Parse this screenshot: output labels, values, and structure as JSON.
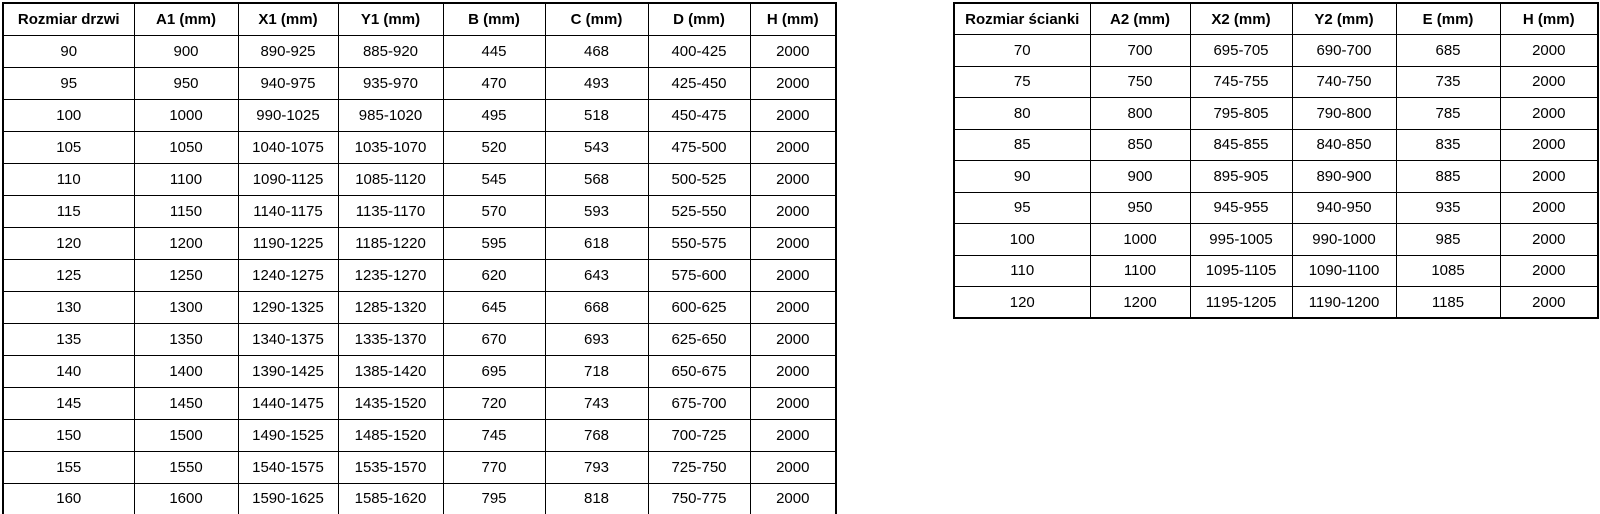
{
  "colors": {
    "background": "#ffffff",
    "border": "#000000",
    "text": "#000000"
  },
  "door_table": {
    "headers": [
      "Rozmiar drzwi",
      "A1 (mm)",
      "X1 (mm)",
      "Y1 (mm)",
      "B (mm)",
      "C (mm)",
      "D (mm)",
      "H (mm)"
    ],
    "rows": [
      [
        "90",
        "900",
        "890-925",
        "885-920",
        "445",
        "468",
        "400-425",
        "2000"
      ],
      [
        "95",
        "950",
        "940-975",
        "935-970",
        "470",
        "493",
        "425-450",
        "2000"
      ],
      [
        "100",
        "1000",
        "990-1025",
        "985-1020",
        "495",
        "518",
        "450-475",
        "2000"
      ],
      [
        "105",
        "1050",
        "1040-1075",
        "1035-1070",
        "520",
        "543",
        "475-500",
        "2000"
      ],
      [
        "110",
        "1100",
        "1090-1125",
        "1085-1120",
        "545",
        "568",
        "500-525",
        "2000"
      ],
      [
        "115",
        "1150",
        "1140-1175",
        "1135-1170",
        "570",
        "593",
        "525-550",
        "2000"
      ],
      [
        "120",
        "1200",
        "1190-1225",
        "1185-1220",
        "595",
        "618",
        "550-575",
        "2000"
      ],
      [
        "125",
        "1250",
        "1240-1275",
        "1235-1270",
        "620",
        "643",
        "575-600",
        "2000"
      ],
      [
        "130",
        "1300",
        "1290-1325",
        "1285-1320",
        "645",
        "668",
        "600-625",
        "2000"
      ],
      [
        "135",
        "1350",
        "1340-1375",
        "1335-1370",
        "670",
        "693",
        "625-650",
        "2000"
      ],
      [
        "140",
        "1400",
        "1390-1425",
        "1385-1420",
        "695",
        "718",
        "650-675",
        "2000"
      ],
      [
        "145",
        "1450",
        "1440-1475",
        "1435-1520",
        "720",
        "743",
        "675-700",
        "2000"
      ],
      [
        "150",
        "1500",
        "1490-1525",
        "1485-1520",
        "745",
        "768",
        "700-725",
        "2000"
      ],
      [
        "155",
        "1550",
        "1540-1575",
        "1535-1570",
        "770",
        "793",
        "725-750",
        "2000"
      ],
      [
        "160",
        "1600",
        "1590-1625",
        "1585-1620",
        "795",
        "818",
        "750-775",
        "2000"
      ]
    ]
  },
  "wall_table": {
    "headers": [
      "Rozmiar ścianki",
      "A2 (mm)",
      "X2 (mm)",
      "Y2 (mm)",
      "E (mm)",
      "H (mm)"
    ],
    "rows": [
      [
        "70",
        "700",
        "695-705",
        "690-700",
        "685",
        "2000"
      ],
      [
        "75",
        "750",
        "745-755",
        "740-750",
        "735",
        "2000"
      ],
      [
        "80",
        "800",
        "795-805",
        "790-800",
        "785",
        "2000"
      ],
      [
        "85",
        "850",
        "845-855",
        "840-850",
        "835",
        "2000"
      ],
      [
        "90",
        "900",
        "895-905",
        "890-900",
        "885",
        "2000"
      ],
      [
        "95",
        "950",
        "945-955",
        "940-950",
        "935",
        "2000"
      ],
      [
        "100",
        "1000",
        "995-1005",
        "990-1000",
        "985",
        "2000"
      ],
      [
        "110",
        "1100",
        "1095-1105",
        "1090-1100",
        "1085",
        "2000"
      ],
      [
        "120",
        "1200",
        "1195-1205",
        "1190-1200",
        "1185",
        "2000"
      ]
    ]
  }
}
